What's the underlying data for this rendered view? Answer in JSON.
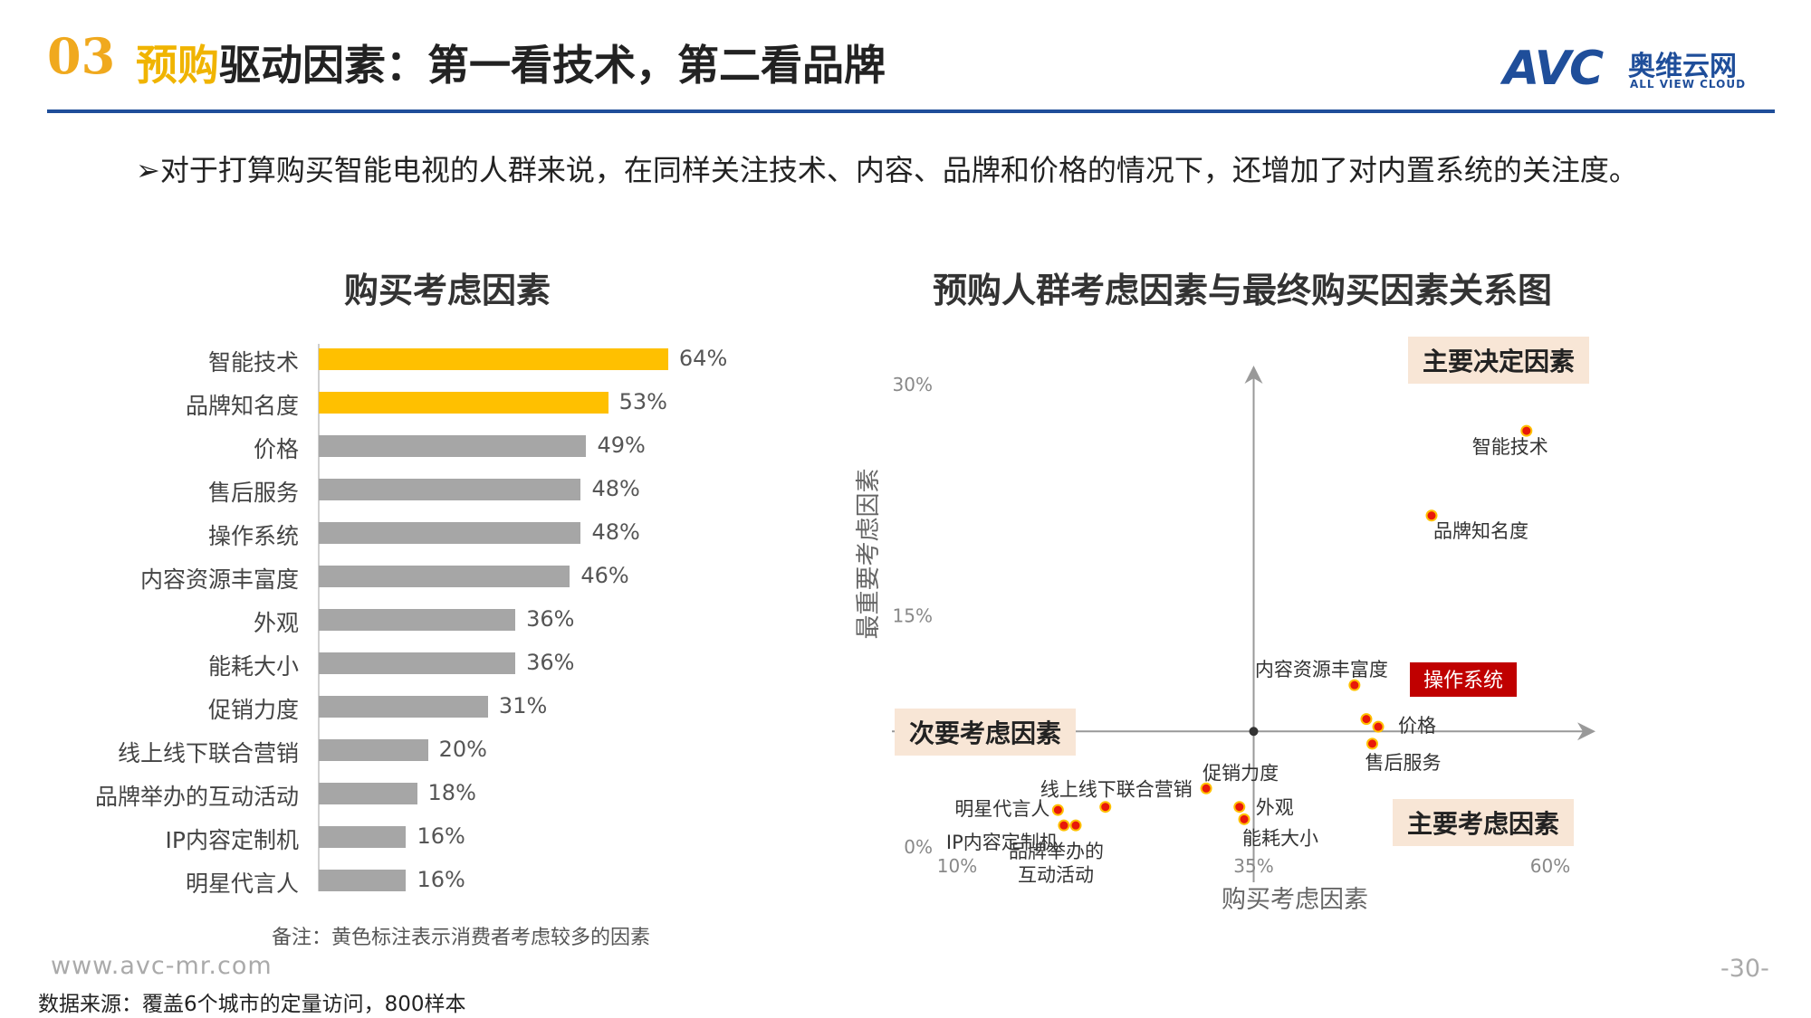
{
  "header": {
    "number": "03",
    "title_highlight": "预购",
    "title_rest": "驱动因素：第一看技术，第二看品牌"
  },
  "logo": {
    "mark": "AVC",
    "cn": "奥维云网",
    "en": "ALL VIEW CLOUD"
  },
  "subtitle": "➢对于打算购买智能电视的人群来说，在同样关注技术、内容、品牌和价格的情况下，还增加了对内置系统的关注度。",
  "note": "备注：黄色标注表示消费者考虑较多的因素",
  "footer": {
    "url": "www.avc-mr.com",
    "page": "-30-",
    "source": "数据来源：覆盖6个城市的定量访问，800样本"
  },
  "colors": {
    "highlight": "#ffc000",
    "normal": "#a6a6a6",
    "brand": "#1f4e9a",
    "accent": "#c00000"
  },
  "chart_data": [
    {
      "type": "bar",
      "orientation": "horizontal",
      "title": "购买考虑因素",
      "categories": [
        "智能技术",
        "品牌知名度",
        "价格",
        "售后服务",
        "操作系统",
        "内容资源丰富度",
        "外观",
        "能耗大小",
        "促销力度",
        "线上线下联合营销",
        "品牌举办的互动活动",
        "IP内容定制机",
        "明星代言人"
      ],
      "values": [
        64,
        53,
        49,
        48,
        48,
        46,
        36,
        36,
        31,
        20,
        18,
        16,
        16
      ],
      "value_labels": [
        "64%",
        "53%",
        "49%",
        "48%",
        "48%",
        "46%",
        "36%",
        "36%",
        "31%",
        "20%",
        "18%",
        "16%",
        "16%"
      ],
      "highlighted": [
        true,
        true,
        false,
        false,
        false,
        false,
        false,
        false,
        false,
        false,
        false,
        false,
        false
      ],
      "xlim": [
        0,
        100
      ]
    },
    {
      "type": "scatter",
      "title": "预购人群考虑因素与最终购买因素关系图",
      "xlabel": "购买考虑因素",
      "ylabel": "最重要考虑因素",
      "x_ticks": [
        "10%",
        "35%",
        "60%"
      ],
      "y_ticks": [
        "0%",
        "15%",
        "30%"
      ],
      "x_tick_values": [
        10,
        35,
        60
      ],
      "y_tick_values": [
        0,
        15,
        30
      ],
      "xlim": [
        10,
        60
      ],
      "ylim": [
        0,
        30
      ],
      "origin": [
        35,
        7.5
      ],
      "points": [
        {
          "label": "智能技术",
          "x": 58,
          "y": 27
        },
        {
          "label": "品牌知名度",
          "x": 50,
          "y": 21.5
        },
        {
          "label": "内容资源丰富度",
          "x": 43.5,
          "y": 10.5
        },
        {
          "label": "操作系统",
          "x": 44.5,
          "y": 8.3,
          "highlight": true
        },
        {
          "label": "价格",
          "x": 45.5,
          "y": 7.8
        },
        {
          "label": "售后服务",
          "x": 45,
          "y": 6.7
        },
        {
          "label": "促销力度",
          "x": 31,
          "y": 3.8
        },
        {
          "label": "外观",
          "x": 33.8,
          "y": 2.6
        },
        {
          "label": "能耗大小",
          "x": 34.2,
          "y": 1.8
        },
        {
          "label": "线上线下联合营销",
          "x": 22.5,
          "y": 2.6
        },
        {
          "label": "明星代言人",
          "x": 18.5,
          "y": 2.4
        },
        {
          "label": "IP内容定制机",
          "x": 19,
          "y": 1.4
        },
        {
          "label": "品牌举办的互动活动",
          "x": 20,
          "y": 1.4
        }
      ],
      "quadrants": {
        "top_right": "主要决定因素",
        "middle_left": "次要考虑因素",
        "bottom_right": "主要考虑因素"
      }
    }
  ]
}
